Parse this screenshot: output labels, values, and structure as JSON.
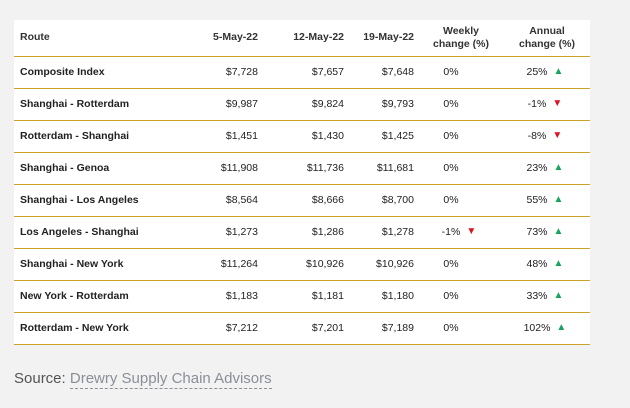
{
  "table": {
    "headers": {
      "route": "Route",
      "date1": "5-May-22",
      "date2": "12-May-22",
      "date3": "19-May-22",
      "weekly_line1": "Weekly",
      "weekly_line2": "change (%)",
      "annual_line1": "Annual",
      "annual_line2": "change (%)"
    },
    "rows": [
      {
        "route": "Composite Index",
        "d1": "$7,728",
        "d2": "$7,657",
        "d3": "$7,648",
        "weekly": "0%",
        "weekly_dir": "none",
        "annual": "25%",
        "annual_dir": "up"
      },
      {
        "route": "Shanghai - Rotterdam",
        "d1": "$9,987",
        "d2": "$9,824",
        "d3": "$9,793",
        "weekly": "0%",
        "weekly_dir": "none",
        "annual": "-1%",
        "annual_dir": "down"
      },
      {
        "route": "Rotterdam - Shanghai",
        "d1": "$1,451",
        "d2": "$1,430",
        "d3": "$1,425",
        "weekly": "0%",
        "weekly_dir": "none",
        "annual": "-8%",
        "annual_dir": "down"
      },
      {
        "route": "Shanghai - Genoa",
        "d1": "$11,908",
        "d2": "$11,736",
        "d3": "$11,681",
        "weekly": "0%",
        "weekly_dir": "none",
        "annual": "23%",
        "annual_dir": "up"
      },
      {
        "route": "Shanghai - Los Angeles",
        "d1": "$8,564",
        "d2": "$8,666",
        "d3": "$8,700",
        "weekly": "0%",
        "weekly_dir": "none",
        "annual": "55%",
        "annual_dir": "up"
      },
      {
        "route": "Los Angeles - Shanghai",
        "d1": "$1,273",
        "d2": "$1,286",
        "d3": "$1,278",
        "weekly": "-1%",
        "weekly_dir": "down",
        "annual": "73%",
        "annual_dir": "up"
      },
      {
        "route": "Shanghai - New York",
        "d1": "$11,264",
        "d2": "$10,926",
        "d3": "$10,926",
        "weekly": "0%",
        "weekly_dir": "none",
        "annual": "48%",
        "annual_dir": "up"
      },
      {
        "route": "New York - Rotterdam",
        "d1": "$1,183",
        "d2": "$1,181",
        "d3": "$1,180",
        "weekly": "0%",
        "weekly_dir": "none",
        "annual": "33%",
        "annual_dir": "up"
      },
      {
        "route": "Rotterdam - New York",
        "d1": "$7,212",
        "d2": "$7,201",
        "d3": "$7,189",
        "weekly": "0%",
        "weekly_dir": "none",
        "annual": "102%",
        "annual_dir": "up"
      }
    ]
  },
  "source": {
    "prefix": "Source: ",
    "link_text": "Drewry Supply Chain Advisors"
  },
  "colors": {
    "rule": "#c9a227",
    "up": "#1aa260",
    "down": "#d9141b"
  },
  "icons": {
    "up": "triangle-up-icon",
    "down": "triangle-down-icon"
  }
}
